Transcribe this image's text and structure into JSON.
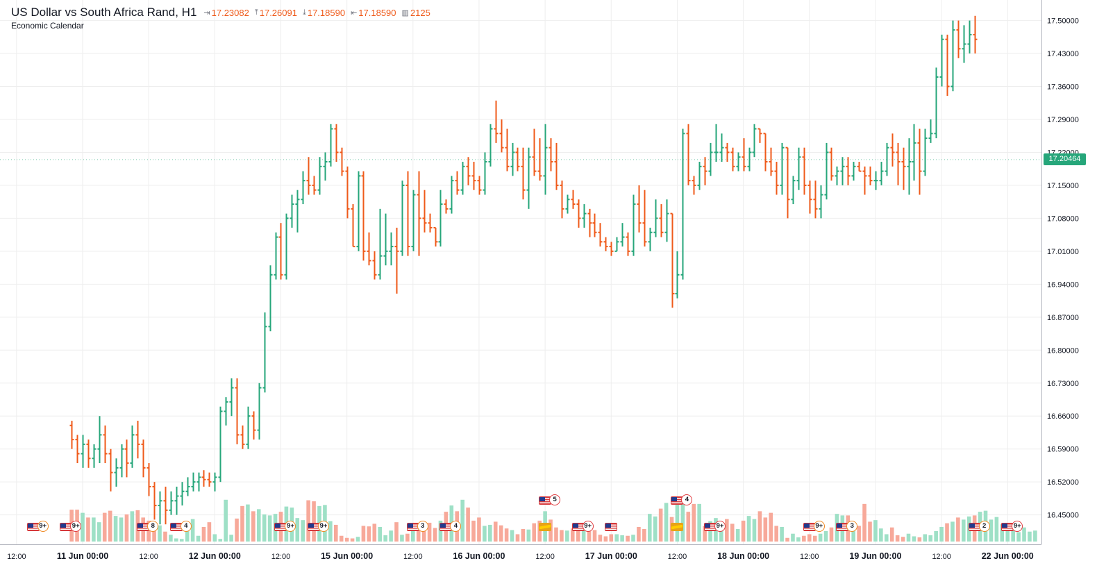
{
  "header": {
    "title": "US Dollar vs South Africa Rand, H1",
    "open": "17.23082",
    "high": "17.26091",
    "low": "17.18590",
    "close": "17.18590",
    "volume": "2125",
    "subtitle": "Economic Calendar",
    "icons": [
      "open-icon",
      "high-icon",
      "low-icon",
      "close-icon",
      "volume-icon"
    ]
  },
  "last_price": "17.20464",
  "colors": {
    "up": "#26a67a",
    "down": "#ef5a1a",
    "vol_up": "#9ee0c6",
    "vol_down": "#f7a99a",
    "grid": "#eeeeee"
  },
  "chart_data": {
    "type": "ohlc",
    "symbol": "USDZAR",
    "timeframe": "H1",
    "ylim": [
      16.42,
      17.52
    ],
    "y_ticks": [
      "17.50000",
      "17.43000",
      "17.36000",
      "17.29000",
      "17.22000",
      "17.15000",
      "17.08000",
      "17.01000",
      "16.94000",
      "16.87000",
      "16.80000",
      "16.73000",
      "16.66000",
      "16.59000",
      "16.52000",
      "16.45000"
    ],
    "x_ticks": [
      {
        "label": "12:00",
        "bar": -10,
        "major": false
      },
      {
        "label": "11 Jun 00:00",
        "bar": 2,
        "major": true
      },
      {
        "label": "12:00",
        "bar": 14,
        "major": false
      },
      {
        "label": "12 Jun 00:00",
        "bar": 26,
        "major": true
      },
      {
        "label": "12:00",
        "bar": 38,
        "major": false
      },
      {
        "label": "15 Jun 00:00",
        "bar": 50,
        "major": true
      },
      {
        "label": "12:00",
        "bar": 62,
        "major": false
      },
      {
        "label": "16 Jun 00:00",
        "bar": 74,
        "major": true
      },
      {
        "label": "12:00",
        "bar": 86,
        "major": false
      },
      {
        "label": "17 Jun 00:00",
        "bar": 98,
        "major": true
      },
      {
        "label": "12:00",
        "bar": 110,
        "major": false
      },
      {
        "label": "18 Jun 00:00",
        "bar": 122,
        "major": true
      },
      {
        "label": "12:00",
        "bar": 134,
        "major": false
      },
      {
        "label": "19 Jun 00:00",
        "bar": 146,
        "major": true
      },
      {
        "label": "12:00",
        "bar": 158,
        "major": false
      },
      {
        "label": "22 Jun 00:00",
        "bar": 170,
        "major": true
      }
    ],
    "bars": [
      [
        16.64,
        16.65,
        16.59,
        16.61
      ],
      [
        16.61,
        16.62,
        16.56,
        16.58
      ],
      [
        16.58,
        16.62,
        16.55,
        16.6
      ],
      [
        16.6,
        16.61,
        16.55,
        16.57
      ],
      [
        16.57,
        16.6,
        16.55,
        16.59
      ],
      [
        16.59,
        16.66,
        16.56,
        16.62
      ],
      [
        16.62,
        16.64,
        16.56,
        16.58
      ],
      [
        16.58,
        16.59,
        16.5,
        16.54
      ],
      [
        16.54,
        16.57,
        16.51,
        16.55
      ],
      [
        16.55,
        16.6,
        16.53,
        16.59
      ],
      [
        16.59,
        16.61,
        16.53,
        16.56
      ],
      [
        16.56,
        16.64,
        16.55,
        16.62
      ],
      [
        16.62,
        16.65,
        16.57,
        16.6
      ],
      [
        16.6,
        16.61,
        16.53,
        16.55
      ],
      [
        16.55,
        16.56,
        16.49,
        16.51
      ],
      [
        16.51,
        16.52,
        16.44,
        16.47
      ],
      [
        16.47,
        16.5,
        16.43,
        16.48
      ],
      [
        16.48,
        16.51,
        16.43,
        16.46
      ],
      [
        16.46,
        16.5,
        16.45,
        16.48
      ],
      [
        16.48,
        16.51,
        16.45,
        16.49
      ],
      [
        16.49,
        16.52,
        16.47,
        16.5
      ],
      [
        16.5,
        16.53,
        16.49,
        16.51
      ],
      [
        16.51,
        16.54,
        16.5,
        16.52
      ],
      [
        16.52,
        16.54,
        16.5,
        16.53
      ],
      [
        16.53,
        16.545,
        16.51,
        16.525
      ],
      [
        16.525,
        16.54,
        16.51,
        16.52
      ],
      [
        16.52,
        16.54,
        16.5,
        16.53
      ],
      [
        16.53,
        16.68,
        16.52,
        16.67
      ],
      [
        16.67,
        16.7,
        16.64,
        16.69
      ],
      [
        16.69,
        16.74,
        16.66,
        16.72
      ],
      [
        16.72,
        16.74,
        16.6,
        16.62
      ],
      [
        16.62,
        16.64,
        16.59,
        16.6
      ],
      [
        16.6,
        16.68,
        16.59,
        16.66
      ],
      [
        16.66,
        16.67,
        16.61,
        16.63
      ],
      [
        16.63,
        16.73,
        16.61,
        16.72
      ],
      [
        16.72,
        16.88,
        16.71,
        16.85
      ],
      [
        16.85,
        16.98,
        16.84,
        16.96
      ],
      [
        16.96,
        17.05,
        16.95,
        17.04
      ],
      [
        17.04,
        17.07,
        16.95,
        16.96
      ],
      [
        16.96,
        17.09,
        16.95,
        17.08
      ],
      [
        17.08,
        17.13,
        17.06,
        17.11
      ],
      [
        17.11,
        17.14,
        17.05,
        17.12
      ],
      [
        17.12,
        17.18,
        17.11,
        17.16
      ],
      [
        17.16,
        17.21,
        17.13,
        17.15
      ],
      [
        17.15,
        17.17,
        17.13,
        17.14
      ],
      [
        17.14,
        17.21,
        17.13,
        17.19
      ],
      [
        17.19,
        17.22,
        17.16,
        17.2
      ],
      [
        17.2,
        17.28,
        17.19,
        17.27
      ],
      [
        17.27,
        17.28,
        17.2,
        17.22
      ],
      [
        17.22,
        17.23,
        17.17,
        17.18
      ],
      [
        17.18,
        17.19,
        17.08,
        17.1
      ],
      [
        17.1,
        17.11,
        17.02,
        17.02
      ],
      [
        17.02,
        17.18,
        17.01,
        17.17
      ],
      [
        17.17,
        17.18,
        16.99,
        17.01
      ],
      [
        17.01,
        17.05,
        16.98,
        16.99
      ],
      [
        16.99,
        17.01,
        16.95,
        16.96
      ],
      [
        16.96,
        17.1,
        16.95,
        17.0
      ],
      [
        17.0,
        17.09,
        16.98,
        17.01
      ],
      [
        17.01,
        17.05,
        16.98,
        17.02
      ],
      [
        17.02,
        17.06,
        16.92,
        17.01
      ],
      [
        17.01,
        17.16,
        17.0,
        17.15
      ],
      [
        17.15,
        17.18,
        17.0,
        17.02
      ],
      [
        17.02,
        17.14,
        17.01,
        17.13
      ],
      [
        17.13,
        17.18,
        17.0,
        17.08
      ],
      [
        17.08,
        17.14,
        17.05,
        17.07
      ],
      [
        17.07,
        17.09,
        17.05,
        17.06
      ],
      [
        17.06,
        17.06,
        17.02,
        17.03
      ],
      [
        17.03,
        17.14,
        17.02,
        17.11
      ],
      [
        17.11,
        17.12,
        17.09,
        17.1
      ],
      [
        17.1,
        17.17,
        17.09,
        17.16
      ],
      [
        17.16,
        17.18,
        17.13,
        17.14
      ],
      [
        17.14,
        17.2,
        17.13,
        17.19
      ],
      [
        17.19,
        17.21,
        17.15,
        17.17
      ],
      [
        17.17,
        17.2,
        17.14,
        17.16
      ],
      [
        17.16,
        17.17,
        17.13,
        17.14
      ],
      [
        17.14,
        17.22,
        17.13,
        17.2
      ],
      [
        17.2,
        17.28,
        17.19,
        17.27
      ],
      [
        17.27,
        17.33,
        17.24,
        17.26
      ],
      [
        17.26,
        17.29,
        17.22,
        17.23
      ],
      [
        17.23,
        17.27,
        17.18,
        17.19
      ],
      [
        17.19,
        17.24,
        17.17,
        17.22
      ],
      [
        17.22,
        17.23,
        17.18,
        17.19
      ],
      [
        17.19,
        17.23,
        17.12,
        17.14
      ],
      [
        17.14,
        17.23,
        17.1,
        17.21
      ],
      [
        17.21,
        17.27,
        17.17,
        17.18
      ],
      [
        17.18,
        17.25,
        17.16,
        17.17
      ],
      [
        17.17,
        17.28,
        17.13,
        17.23
      ],
      [
        17.23,
        17.25,
        17.18,
        17.2
      ],
      [
        17.2,
        17.24,
        17.14,
        17.15
      ],
      [
        17.15,
        17.16,
        17.08,
        17.1
      ],
      [
        17.1,
        17.13,
        17.09,
        17.12
      ],
      [
        17.12,
        17.14,
        17.1,
        17.11
      ],
      [
        17.11,
        17.12,
        17.06,
        17.08
      ],
      [
        17.08,
        17.11,
        17.06,
        17.09
      ],
      [
        17.09,
        17.1,
        17.04,
        17.07
      ],
      [
        17.07,
        17.09,
        17.04,
        17.05
      ],
      [
        17.05,
        17.07,
        17.02,
        17.03
      ],
      [
        17.03,
        17.04,
        17.01,
        17.02
      ],
      [
        17.02,
        17.03,
        17.0,
        17.01
      ],
      [
        17.01,
        17.04,
        17.01,
        17.03
      ],
      [
        17.03,
        17.07,
        17.02,
        17.04
      ],
      [
        17.04,
        17.05,
        17.0,
        17.01
      ],
      [
        17.01,
        17.13,
        17.0,
        17.11
      ],
      [
        17.11,
        17.15,
        17.05,
        17.07
      ],
      [
        17.07,
        17.14,
        17.02,
        17.03
      ],
      [
        17.03,
        17.06,
        17.01,
        17.05
      ],
      [
        17.05,
        17.12,
        17.04,
        17.08
      ],
      [
        17.08,
        17.11,
        17.04,
        17.05
      ],
      [
        17.05,
        17.12,
        17.03,
        17.09
      ],
      [
        17.09,
        17.09,
        16.89,
        16.92
      ],
      [
        16.92,
        17.01,
        16.91,
        16.96
      ],
      [
        16.96,
        17.27,
        16.95,
        17.26
      ],
      [
        17.26,
        17.28,
        17.15,
        17.16
      ],
      [
        17.16,
        17.17,
        17.13,
        17.15
      ],
      [
        17.15,
        17.2,
        17.14,
        17.19
      ],
      [
        17.19,
        17.21,
        17.15,
        17.18
      ],
      [
        17.18,
        17.24,
        17.17,
        17.22
      ],
      [
        17.22,
        17.28,
        17.2,
        17.22
      ],
      [
        17.22,
        17.26,
        17.2,
        17.23
      ],
      [
        17.23,
        17.24,
        17.2,
        17.22
      ],
      [
        17.22,
        17.23,
        17.18,
        17.19
      ],
      [
        17.19,
        17.22,
        17.18,
        17.21
      ],
      [
        17.21,
        17.25,
        17.18,
        17.19
      ],
      [
        17.19,
        17.23,
        17.18,
        17.22
      ],
      [
        17.22,
        17.28,
        17.21,
        17.27
      ],
      [
        17.27,
        17.27,
        17.24,
        17.26
      ],
      [
        17.26,
        17.26,
        17.18,
        17.2
      ],
      [
        17.2,
        17.23,
        17.17,
        17.18
      ],
      [
        17.18,
        17.2,
        17.13,
        17.15
      ],
      [
        17.15,
        17.24,
        17.13,
        17.23
      ],
      [
        17.23,
        17.23,
        17.08,
        17.12
      ],
      [
        17.12,
        17.17,
        17.11,
        17.16
      ],
      [
        17.16,
        17.23,
        17.14,
        17.21
      ],
      [
        17.21,
        17.23,
        17.13,
        17.15
      ],
      [
        17.15,
        17.16,
        17.09,
        17.12
      ],
      [
        17.12,
        17.16,
        17.08,
        17.1
      ],
      [
        17.1,
        17.15,
        17.08,
        17.13
      ],
      [
        17.13,
        17.24,
        17.12,
        17.22
      ],
      [
        17.22,
        17.23,
        17.16,
        17.17
      ],
      [
        17.17,
        17.19,
        17.15,
        17.18
      ],
      [
        17.18,
        17.21,
        17.15,
        17.19
      ],
      [
        17.19,
        17.21,
        17.15,
        17.17
      ],
      [
        17.17,
        17.2,
        17.16,
        17.19
      ],
      [
        17.19,
        17.2,
        17.18,
        17.18
      ],
      [
        17.18,
        17.19,
        17.13,
        17.17
      ],
      [
        17.17,
        17.19,
        17.15,
        17.16
      ],
      [
        17.16,
        17.18,
        17.14,
        17.16
      ],
      [
        17.16,
        17.2,
        17.15,
        17.18
      ],
      [
        17.18,
        17.24,
        17.17,
        17.23
      ],
      [
        17.23,
        17.26,
        17.19,
        17.22
      ],
      [
        17.22,
        17.24,
        17.15,
        17.2
      ],
      [
        17.2,
        17.23,
        17.14,
        17.19
      ],
      [
        17.19,
        17.25,
        17.13,
        17.2
      ],
      [
        17.2,
        17.28,
        17.16,
        17.24
      ],
      [
        17.24,
        17.27,
        17.13,
        17.18
      ],
      [
        17.18,
        17.27,
        17.17,
        17.25
      ],
      [
        17.25,
        17.29,
        17.24,
        17.26
      ],
      [
        17.26,
        17.4,
        17.25,
        17.38
      ],
      [
        17.38,
        17.47,
        17.36,
        17.46
      ],
      [
        17.46,
        17.47,
        17.34,
        17.36
      ],
      [
        17.36,
        17.5,
        17.35,
        17.48
      ],
      [
        17.48,
        17.5,
        17.42,
        17.44
      ],
      [
        17.44,
        17.49,
        17.41,
        17.45
      ],
      [
        17.45,
        17.5,
        17.43,
        17.47
      ],
      [
        17.47,
        17.51,
        17.43,
        17.46
      ]
    ],
    "volume_ylim": [
      0,
      210
    ],
    "volume": [
      61,
      61,
      55,
      46,
      46,
      37,
      55,
      59,
      49,
      46,
      52,
      58,
      60,
      46,
      40,
      38,
      31,
      19,
      13,
      6,
      5,
      27,
      43,
      11,
      28,
      37,
      14,
      5,
      80,
      13,
      44,
      68,
      71,
      58,
      62,
      52,
      50,
      53,
      57,
      67,
      65,
      45,
      41,
      79,
      77,
      68,
      70,
      39,
      32,
      11,
      7,
      6,
      9,
      30,
      29,
      34,
      28,
      12,
      21,
      37,
      13,
      15,
      20,
      22,
      23,
      36,
      26,
      40,
      57,
      69,
      58,
      80,
      65,
      40,
      46,
      30,
      32,
      38,
      31,
      25,
      22,
      14,
      24,
      23,
      35,
      40,
      58,
      42,
      27,
      22,
      21,
      25,
      29,
      36,
      38,
      22,
      13,
      10,
      14,
      14,
      12,
      11,
      13,
      28,
      24,
      53,
      48,
      63,
      74,
      47,
      75,
      71,
      57,
      72,
      72,
      30,
      39,
      45,
      24,
      43,
      34,
      24,
      40,
      49,
      43,
      58,
      46,
      55,
      30,
      28,
      7,
      15,
      8,
      11,
      14,
      11,
      15,
      20,
      27,
      53,
      50,
      50,
      37,
      30,
      72,
      38,
      41,
      25,
      14,
      27,
      12,
      9,
      15,
      10,
      8,
      14,
      12,
      20,
      28,
      35,
      38,
      46,
      42,
      48,
      50,
      57,
      59,
      42,
      47,
      33,
      22,
      21,
      18,
      27,
      19,
      21
    ],
    "events": [
      {
        "bar": -7,
        "flag": "US",
        "count": "9+",
        "color": "orange",
        "row": 0
      },
      {
        "bar": -1,
        "flag": "US",
        "count": "9+",
        "color": "red",
        "row": 0
      },
      {
        "bar": 13,
        "flag": "US",
        "count": "8",
        "color": "orange",
        "row": 0
      },
      {
        "bar": 19,
        "flag": "US",
        "count": "4",
        "color": "orange",
        "row": 0
      },
      {
        "bar": 38,
        "flag": "US",
        "count": "9+",
        "color": "orange",
        "row": 0
      },
      {
        "bar": 44,
        "flag": "US",
        "count": "9+",
        "color": "orange",
        "row": 0
      },
      {
        "bar": 62,
        "flag": "US",
        "count": "3",
        "color": "orange",
        "row": 0
      },
      {
        "bar": 68,
        "flag": "US",
        "count": "4",
        "color": "orange",
        "row": 0
      },
      {
        "bar": 86,
        "flag": "US",
        "count": "5",
        "color": "red",
        "row": 1
      },
      {
        "bar": 86,
        "flag": "ZA",
        "count": "",
        "color": "orange",
        "row": 0
      },
      {
        "bar": 92,
        "flag": "US",
        "count": "9+",
        "color": "red",
        "row": 0
      },
      {
        "bar": 98,
        "flag": "US",
        "count": "",
        "color": "orange",
        "row": 0
      },
      {
        "bar": 110,
        "flag": "US",
        "count": "4",
        "color": "red",
        "row": 1
      },
      {
        "bar": 110,
        "flag": "ZA",
        "count": "",
        "color": "orange",
        "row": 0
      },
      {
        "bar": 116,
        "flag": "US",
        "count": "9+",
        "color": "red",
        "row": 0
      },
      {
        "bar": 134,
        "flag": "US",
        "count": "9+",
        "color": "orange",
        "row": 0
      },
      {
        "bar": 140,
        "flag": "US",
        "count": "3",
        "color": "orange",
        "row": 0
      },
      {
        "bar": 164,
        "flag": "US",
        "count": "2",
        "color": "orange",
        "row": 0
      },
      {
        "bar": 170,
        "flag": "US",
        "count": "9+",
        "color": "red",
        "row": 0
      }
    ]
  }
}
